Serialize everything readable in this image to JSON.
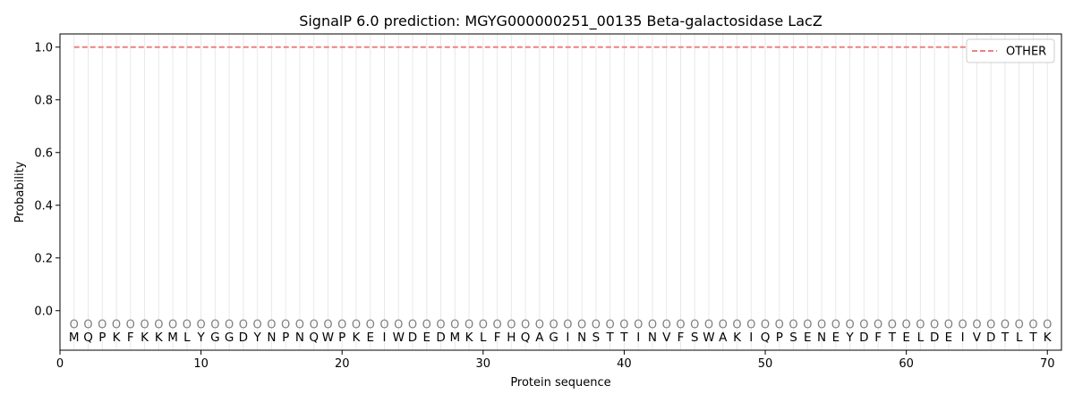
{
  "chart_data": {
    "type": "line",
    "title": "SignalP 6.0 prediction: MGYG000000251_00135 Beta-galactosidase LacZ",
    "xlabel": "Protein sequence",
    "ylabel": "Probability",
    "xlim": [
      0,
      71
    ],
    "ylim": [
      -0.15,
      1.05
    ],
    "xticks": [
      0,
      10,
      20,
      30,
      40,
      50,
      60,
      70
    ],
    "yticks": [
      "0.0",
      "0.2",
      "0.4",
      "0.6",
      "0.8",
      "1.0"
    ],
    "sequence": [
      "M",
      "Q",
      "P",
      "K",
      "F",
      "K",
      "K",
      "M",
      "L",
      "Y",
      "G",
      "G",
      "D",
      "Y",
      "N",
      "P",
      "N",
      "Q",
      "W",
      "P",
      "K",
      "E",
      "I",
      "W",
      "D",
      "E",
      "D",
      "M",
      "K",
      "L",
      "F",
      "H",
      "Q",
      "A",
      "G",
      "I",
      "N",
      "S",
      "T",
      "T",
      "I",
      "N",
      "V",
      "F",
      "S",
      "W",
      "A",
      "K",
      "I",
      "Q",
      "P",
      "S",
      "E",
      "N",
      "E",
      "Y",
      "D",
      "F",
      "T",
      "E",
      "L",
      "D",
      "E",
      "I",
      "V",
      "D",
      "T",
      "L",
      "T",
      "K"
    ],
    "region_label": "O",
    "series": [
      {
        "name": "OTHER",
        "color": "#f08080",
        "style": "dashed",
        "x_start": 1,
        "x_end": 70,
        "value": 1.0
      }
    ],
    "legend": {
      "position": "top-right"
    },
    "grid": "vertical-per-residue",
    "grid_color": "#e8e8e8"
  }
}
